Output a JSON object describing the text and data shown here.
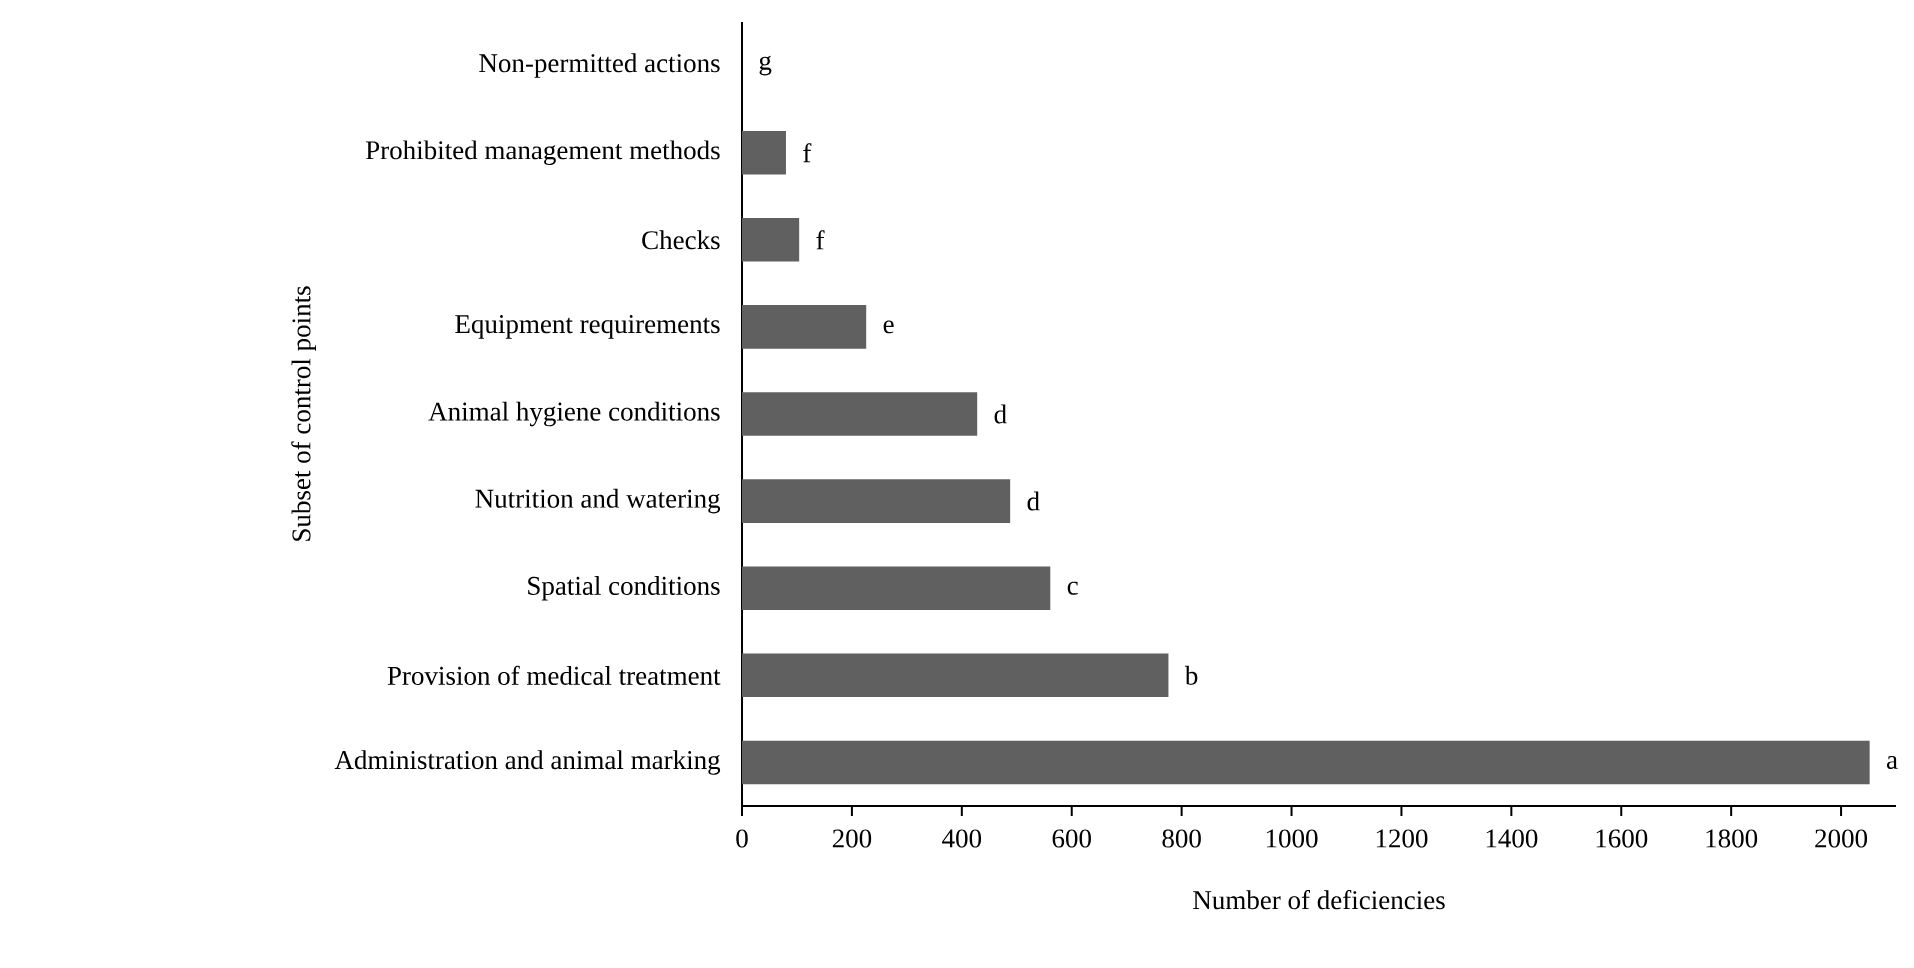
{
  "chart_data": {
    "type": "bar",
    "orientation": "horizontal",
    "categories": [
      "Non-permitted actions",
      "Prohibited management methods",
      "Checks",
      "Equipment requirements",
      "Animal hygiene conditions",
      "Nutrition and watering",
      "Spatial conditions",
      "Provision of medical treatment",
      "Administration and animal marking"
    ],
    "values": [
      0,
      80,
      104,
      226,
      428,
      488,
      561,
      776,
      2052
    ],
    "value_labels": [
      "g",
      "f",
      "f",
      "e",
      "d",
      "d",
      "c",
      "b",
      "a"
    ],
    "color": "#606060",
    "xlim": [
      0,
      2100
    ],
    "xticks": [
      0,
      200,
      400,
      600,
      800,
      1000,
      1200,
      1400,
      1600,
      1800,
      2000
    ],
    "xlabel": "Number of deficiencies",
    "ylabel": "Subset of control points"
  }
}
